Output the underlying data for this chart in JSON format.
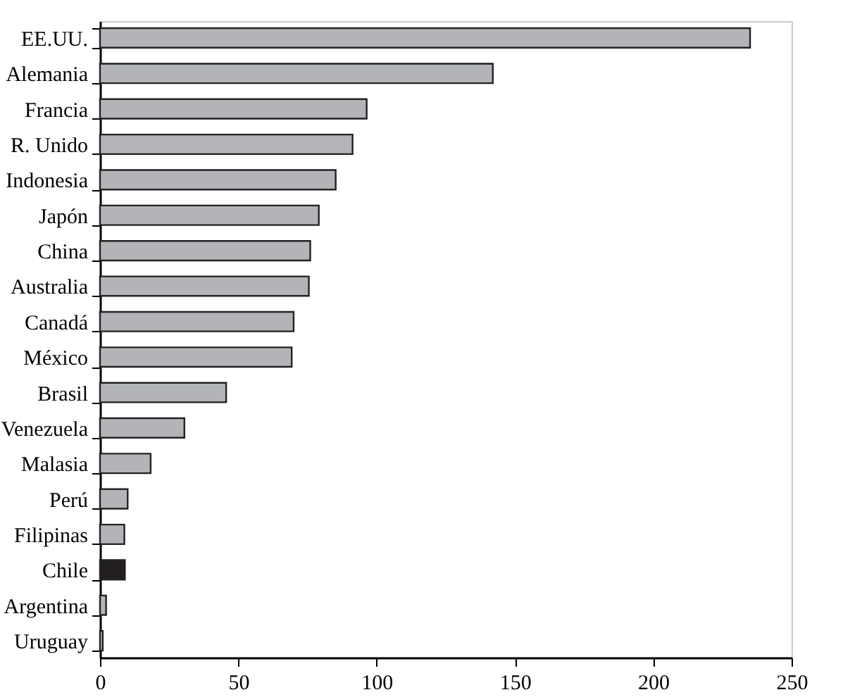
{
  "chart_data": {
    "type": "bar",
    "orientation": "horizontal",
    "categories": [
      "EE.UU.",
      "Alemania",
      "Francia",
      "R. Unido",
      "Indonesia",
      "Japón",
      "China",
      "Australia",
      "Canadá",
      "México",
      "Brasil",
      "Venezuela",
      "Malasia",
      "Perú",
      "Filipinas",
      "Chile",
      "Argentina",
      "Uruguay"
    ],
    "values": [
      235,
      142,
      96.4,
      91.3,
      85.2,
      79.1,
      76,
      75.5,
      70,
      69.3,
      45.6,
      30.5,
      18.3,
      10,
      8.8,
      9,
      2.2,
      1
    ],
    "colors": [
      "#b2b4b8",
      "#b2b4b8",
      "#b2b4b8",
      "#b2b4b8",
      "#b2b4b8",
      "#b2b4b8",
      "#b2b4b8",
      "#b2b4b8",
      "#b2b4b8",
      "#b2b4b8",
      "#b2b4b8",
      "#b2b4b8",
      "#b2b4b8",
      "#b2b4b8",
      "#b2b4b8",
      "#231f20",
      "#b2b4b8",
      "#b2b4b8"
    ],
    "xlim": [
      0,
      250
    ],
    "xticks": [
      0,
      50,
      100,
      150,
      200,
      250
    ],
    "grid": false
  }
}
